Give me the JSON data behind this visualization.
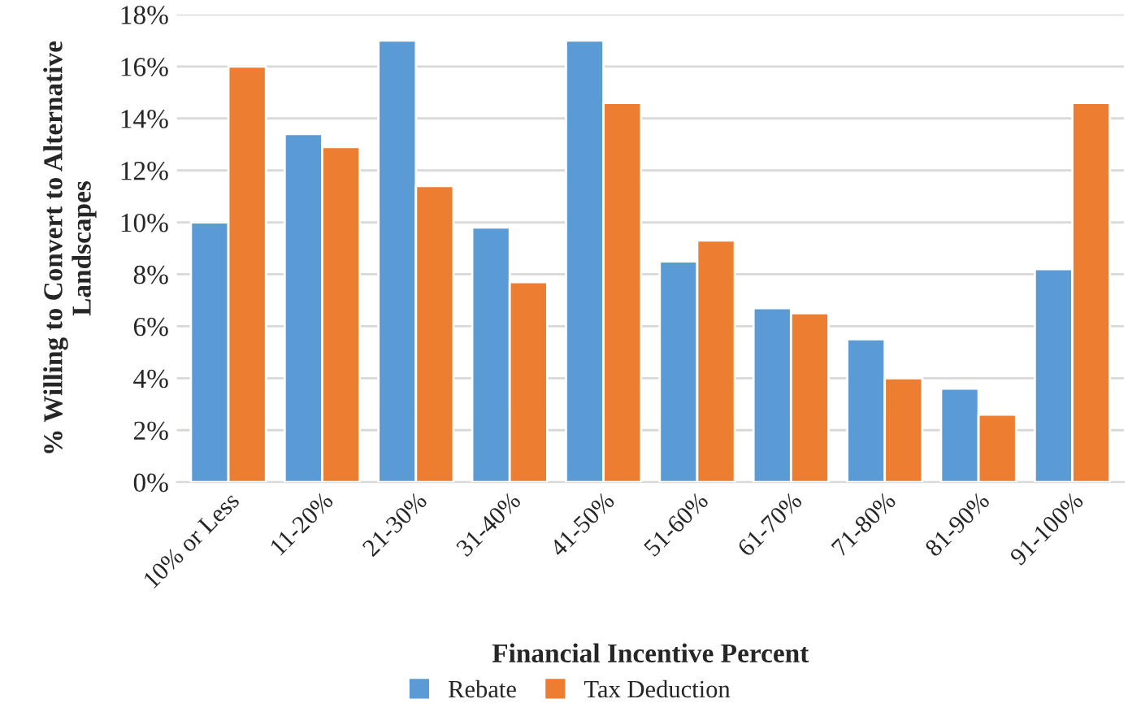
{
  "chart_data": {
    "type": "bar",
    "xlabel": "Financial Incentive Percent",
    "ylabel": "% Willing to Convert to Alternative Landscapes",
    "categories": [
      "10% or Less",
      "11-20%",
      "21-30%",
      "31-40%",
      "41-50%",
      "51-60%",
      "61-70%",
      "71-80%",
      "81-90%",
      "91-100%"
    ],
    "series": [
      {
        "name": "Rebate",
        "color": "#5b9bd5",
        "values": [
          10.0,
          13.4,
          17.0,
          9.8,
          17.0,
          8.5,
          6.7,
          5.5,
          3.6,
          8.2
        ]
      },
      {
        "name": "Tax Deduction",
        "color": "#ed7d31",
        "values": [
          16.0,
          12.9,
          11.4,
          7.7,
          14.6,
          9.3,
          6.5,
          4.0,
          2.6,
          14.6
        ]
      }
    ],
    "ylim": [
      0,
      18
    ],
    "yticks": [
      {
        "value": 0,
        "label": "0%"
      },
      {
        "value": 2,
        "label": "2%"
      },
      {
        "value": 4,
        "label": "4%"
      },
      {
        "value": 6,
        "label": "6%"
      },
      {
        "value": 8,
        "label": "8%"
      },
      {
        "value": 10,
        "label": "10%"
      },
      {
        "value": 12,
        "label": "12%"
      },
      {
        "value": 14,
        "label": "14%"
      },
      {
        "value": 16,
        "label": "16%"
      },
      {
        "value": 18,
        "label": "18%"
      }
    ],
    "grid": "y",
    "legend": "bottom"
  }
}
